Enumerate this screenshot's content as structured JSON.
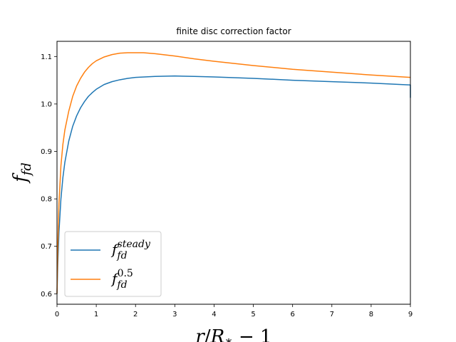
{
  "chart_data": {
    "type": "line",
    "title": "finite disc correction factor",
    "xlabel": "r/R_* − 1",
    "ylabel": "f_fd",
    "xlim": [
      0,
      9
    ],
    "ylim": [
      0.578,
      1.132
    ],
    "xticks": [
      0,
      1,
      2,
      3,
      4,
      5,
      6,
      7,
      8,
      9
    ],
    "yticks": [
      0.6,
      0.7,
      0.8,
      0.9,
      1.0,
      1.1
    ],
    "xtick_labels": [
      "0",
      "1",
      "2",
      "3",
      "4",
      "5",
      "6",
      "7",
      "8",
      "9"
    ],
    "ytick_labels": [
      "0.6",
      "0.7",
      "0.8",
      "0.9",
      "1.0",
      "1.1"
    ],
    "grid": false,
    "legend_position": "lower-left",
    "series": [
      {
        "name": "f_fd^steady",
        "label_main": "f",
        "label_sub": "fd",
        "label_sup": "steady",
        "color": "#1f77b4",
        "x": [
          0.0,
          0.02,
          0.05,
          0.1,
          0.15,
          0.2,
          0.3,
          0.4,
          0.5,
          0.6,
          0.7,
          0.8,
          0.9,
          1.0,
          1.2,
          1.4,
          1.6,
          1.8,
          2.0,
          2.5,
          3.0,
          3.5,
          4.0,
          5.0,
          6.0,
          7.0,
          8.0,
          9.0,
          9.0
        ],
        "y": [
          0.6,
          0.66,
          0.73,
          0.8,
          0.845,
          0.877,
          0.922,
          0.953,
          0.975,
          0.992,
          1.005,
          1.016,
          1.024,
          1.031,
          1.041,
          1.047,
          1.051,
          1.054,
          1.056,
          1.058,
          1.059,
          1.058,
          1.057,
          1.054,
          1.05,
          1.047,
          1.044,
          1.04,
          1.013
        ]
      },
      {
        "name": "f_fd^0.5",
        "label_main": "f",
        "label_sub": "fd",
        "label_sup": "0.5",
        "color": "#ff7f0e",
        "x": [
          0.0,
          0.02,
          0.05,
          0.1,
          0.15,
          0.2,
          0.3,
          0.4,
          0.5,
          0.6,
          0.7,
          0.8,
          0.9,
          1.0,
          1.2,
          1.4,
          1.6,
          1.8,
          2.0,
          2.2,
          2.5,
          3.0,
          3.5,
          4.0,
          5.0,
          6.0,
          7.0,
          8.0,
          9.0
        ],
        "y": [
          0.6,
          0.7,
          0.79,
          0.87,
          0.915,
          0.945,
          0.985,
          1.016,
          1.038,
          1.054,
          1.067,
          1.077,
          1.085,
          1.091,
          1.099,
          1.104,
          1.107,
          1.108,
          1.108,
          1.108,
          1.106,
          1.101,
          1.095,
          1.09,
          1.081,
          1.073,
          1.067,
          1.061,
          1.056
        ]
      }
    ]
  }
}
